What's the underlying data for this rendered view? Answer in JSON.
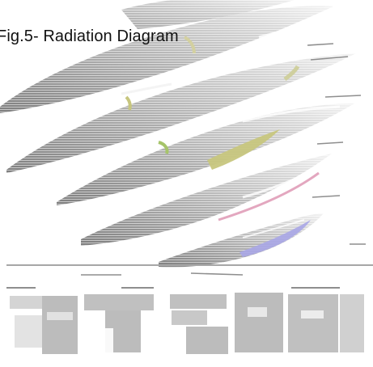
{
  "figure": {
    "title": "Fig.5- Radiation Diagram"
  },
  "colors": {
    "lobe_fill": "#b9b9b9",
    "lobe_shadow": "#8e8e8e",
    "lobe_highlight": "#f1f1f1",
    "accent_olive": "#c7c67e",
    "accent_green": "#8fb35a",
    "accent_pink": "#e3a7bf",
    "accent_violet": "#a8a6e6",
    "ground": "#a7a7a7",
    "bottom_blocks": "#b0b0b0"
  }
}
